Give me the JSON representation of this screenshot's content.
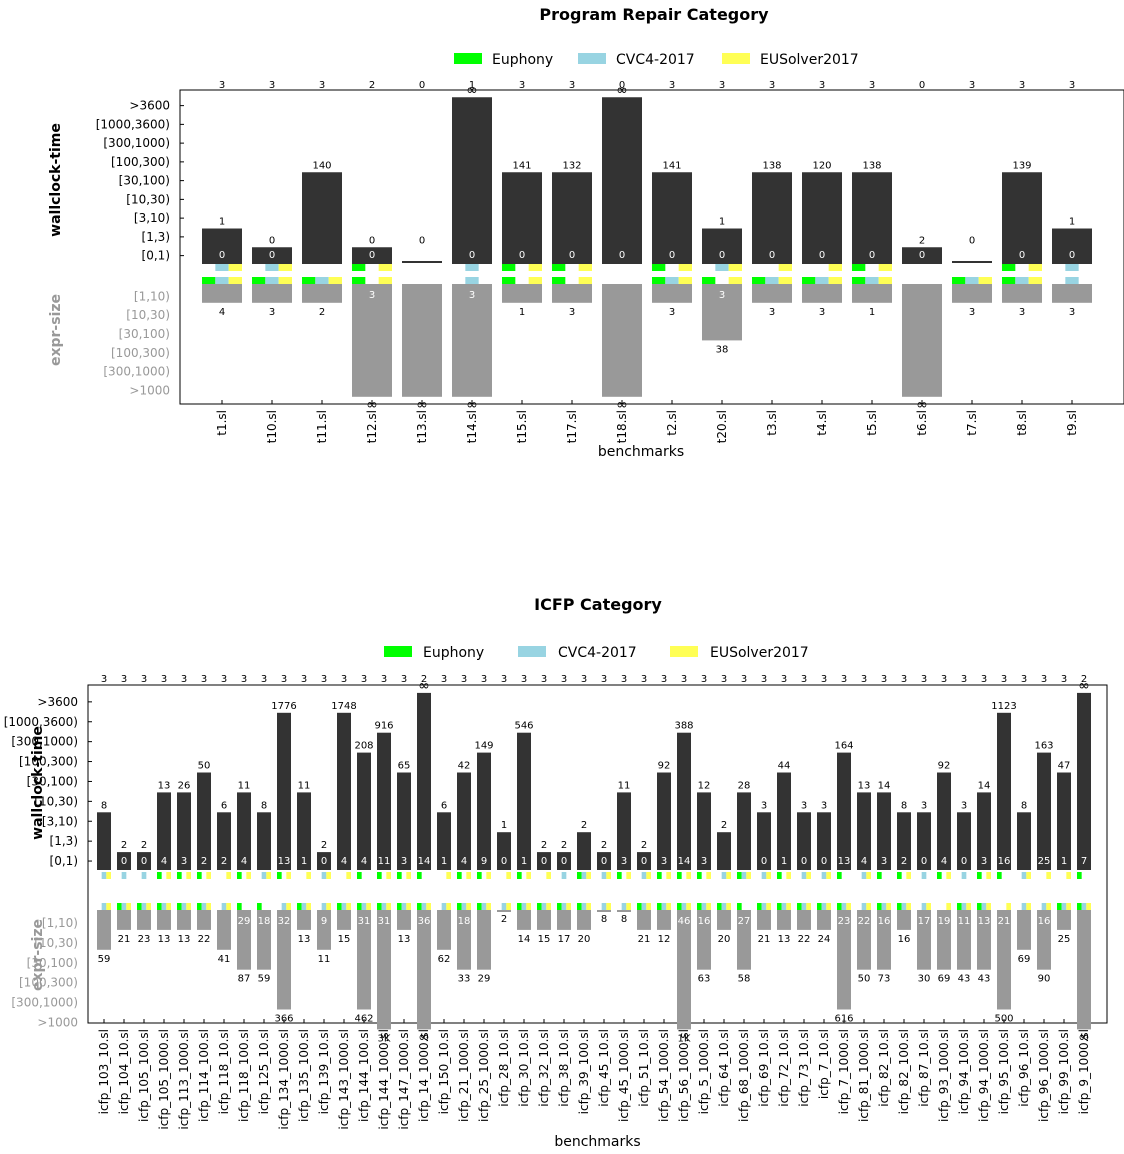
{
  "legend": {
    "items": [
      {
        "label": "Euphony",
        "color": "#00ff00"
      },
      {
        "label": "CVC4-2017",
        "color": "#98d4e2"
      },
      {
        "label": "EUSolver2017",
        "color": "#ffff55"
      }
    ]
  },
  "axes": {
    "time_label": "wallclock-time",
    "size_label": "expr-size",
    "xlabel": "benchmarks",
    "time_ticks": [
      "[0,1)",
      "[1,3)",
      "[3,10)",
      "[10,30)",
      "[30,100)",
      "[100,300)",
      "[300,1000)",
      "[1000,3600)",
      ">3600"
    ],
    "size_ticks": [
      "[1,10)",
      "[10,30)",
      "[30,100)",
      "[100,300)",
      "[300,1000)",
      ">1000"
    ]
  },
  "colors": {
    "time_bar": "#333333",
    "size_bar": "#999999",
    "size_text": "#999999"
  },
  "chart_data": [
    {
      "type": "bar",
      "title": "Program Repair  Category",
      "categories": [
        "t1.sl",
        "t10.sl",
        "t11.sl",
        "t12.sl",
        "t13.sl",
        "t14.sl",
        "t15.sl",
        "t17.sl",
        "t18.sl",
        "t2.sl",
        "t20.sl",
        "t3.sl",
        "t4.sl",
        "t5.sl",
        "t6.sl",
        "t7.sl",
        "t8.sl",
        "t9.sl"
      ],
      "top_counts": [
        "3",
        "3",
        "3",
        "2",
        "0",
        "1",
        "3",
        "3",
        "0",
        "3",
        "3",
        "3",
        "3",
        "3",
        "0",
        "3",
        "3",
        "3"
      ],
      "time_bucket": [
        1,
        0,
        4,
        0,
        0,
        8,
        4,
        4,
        8,
        4,
        1,
        4,
        4,
        4,
        0,
        0,
        4,
        1
      ],
      "time_label": [
        "1",
        "0",
        "140",
        "0",
        "0",
        "∞",
        "141",
        "132",
        "∞",
        "141",
        "1",
        "138",
        "120",
        "138",
        "2",
        "0",
        "139",
        "1"
      ],
      "time_inner": [
        "0",
        "0",
        "",
        "0",
        "",
        "0",
        "0",
        "0",
        "0",
        "0",
        "0",
        "0",
        "0",
        "0",
        "0",
        "",
        "0",
        "0"
      ],
      "size_bucket": [
        0,
        0,
        0,
        5,
        5,
        5,
        0,
        0,
        5,
        0,
        2,
        0,
        0,
        0,
        5,
        0,
        0,
        0
      ],
      "size_label": [
        "4",
        "3",
        "2",
        "∞",
        "∞",
        "∞",
        "1",
        "3",
        "∞",
        "3",
        "38",
        "3",
        "3",
        "1",
        "∞",
        "3",
        "3",
        "3"
      ],
      "size_inner": [
        "",
        "",
        "",
        "3",
        "",
        "3",
        "",
        "",
        "",
        "",
        "3",
        "",
        "",
        "",
        "",
        "",
        "",
        ""
      ],
      "time_solvers": [
        [
          "",
          "C",
          "Y"
        ],
        [
          "",
          "C",
          "Y"
        ],
        [
          "",
          "",
          ""
        ],
        [
          "E",
          "",
          "Y"
        ],
        [
          "",
          "",
          ""
        ],
        [
          "",
          "C",
          ""
        ],
        [
          "E",
          "",
          "Y"
        ],
        [
          "E",
          "",
          "Y"
        ],
        [
          "",
          "",
          ""
        ],
        [
          "E",
          "",
          "Y"
        ],
        [
          "",
          "C",
          "Y"
        ],
        [
          "",
          "",
          "Y"
        ],
        [
          "",
          "",
          "Y"
        ],
        [
          "E",
          "",
          "Y"
        ],
        [
          "",
          "",
          ""
        ],
        [
          "",
          "",
          ""
        ],
        [
          "E",
          "",
          "Y"
        ],
        [
          "",
          "C",
          ""
        ]
      ],
      "size_solvers": [
        [
          "E",
          "C",
          "Y"
        ],
        [
          "E",
          "C",
          "Y"
        ],
        [
          "E",
          "C",
          "Y"
        ],
        [
          "E",
          "",
          "Y"
        ],
        [
          "",
          "",
          ""
        ],
        [
          "",
          "C",
          ""
        ],
        [
          "E",
          "",
          "Y"
        ],
        [
          "E",
          "",
          "Y"
        ],
        [
          "",
          "",
          ""
        ],
        [
          "E",
          "C",
          "Y"
        ],
        [
          "E",
          "",
          "Y"
        ],
        [
          "E",
          "C",
          "Y"
        ],
        [
          "E",
          "C",
          "Y"
        ],
        [
          "E",
          "C",
          "Y"
        ],
        [
          "",
          "",
          ""
        ],
        [
          "E",
          "C",
          "Y"
        ],
        [
          "E",
          "C",
          "Y"
        ],
        [
          "",
          "C",
          ""
        ]
      ]
    },
    {
      "type": "bar",
      "title": "ICFP  Category",
      "categories": [
        "icfp_103_10.sl",
        "icfp_104_10.sl",
        "icfp_105_100.sl",
        "icfp_105_1000.sl",
        "icfp_113_1000.sl",
        "icfp_114_100.sl",
        "icfp_118_10.sl",
        "icfp_118_100.sl",
        "icfp_125_10.sl",
        "icfp_134_1000.sl",
        "icfp_135_100.sl",
        "icfp_139_10.sl",
        "icfp_143_1000.sl",
        "icfp_144_100.sl",
        "icfp_144_1000.sl",
        "icfp_147_1000.sl",
        "icfp_14_1000.sl",
        "icfp_150_10.sl",
        "icfp_21_1000.sl",
        "icfp_25_1000.sl",
        "icfp_28_10.sl",
        "icfp_30_10.sl",
        "icfp_32_10.sl",
        "icfp_38_10.sl",
        "icfp_39_100.sl",
        "icfp_45_10.sl",
        "icfp_45_1000.sl",
        "icfp_51_10.sl",
        "icfp_54_1000.sl",
        "icfp_56_1000.sl",
        "icfp_5_1000.sl",
        "icfp_64_10.sl",
        "icfp_68_1000.sl",
        "icfp_69_10.sl",
        "icfp_72_10.sl",
        "icfp_73_10.sl",
        "icfp_7_10.sl",
        "icfp_7_1000.sl",
        "icfp_81_1000.sl",
        "icfp_82_10.sl",
        "icfp_82_100.sl",
        "icfp_87_10.sl",
        "icfp_93_1000.sl",
        "icfp_94_100.sl",
        "icfp_94_1000.sl",
        "icfp_95_100.sl",
        "icfp_96_10.sl",
        "icfp_96_1000.sl",
        "icfp_99_100.sl",
        "icfp_9_1000.sl"
      ],
      "top_counts": [
        "3",
        "3",
        "3",
        "3",
        "3",
        "3",
        "3",
        "3",
        "3",
        "3",
        "3",
        "3",
        "3",
        "3",
        "3",
        "3",
        "2",
        "3",
        "3",
        "3",
        "3",
        "3",
        "3",
        "3",
        "3",
        "3",
        "3",
        "3",
        "3",
        "3",
        "3",
        "3",
        "3",
        "3",
        "3",
        "3",
        "3",
        "3",
        "3",
        "3",
        "3",
        "3",
        "3",
        "3",
        "3",
        "3",
        "3",
        "3",
        "3",
        "2"
      ],
      "time_bucket": [
        2,
        0,
        0,
        3,
        3,
        4,
        2,
        3,
        2,
        7,
        3,
        0,
        7,
        5,
        6,
        4,
        8,
        2,
        4,
        5,
        1,
        6,
        0,
        0,
        1,
        0,
        3,
        0,
        4,
        6,
        3,
        1,
        3,
        2,
        4,
        2,
        2,
        5,
        3,
        3,
        2,
        2,
        4,
        2,
        3,
        7,
        2,
        5,
        4,
        8
      ],
      "time_label": [
        "8",
        "2",
        "2",
        "13",
        "26",
        "50",
        "6",
        "11",
        "8",
        "1776",
        "11",
        "2",
        "1748",
        "208",
        "916",
        "65",
        "∞",
        "6",
        "42",
        "149",
        "1",
        "546",
        "2",
        "2",
        "2",
        "2",
        "11",
        "2",
        "92",
        "388",
        "12",
        "2",
        "28",
        "3",
        "44",
        "3",
        "3",
        "164",
        "13",
        "14",
        "8",
        "3",
        "92",
        "3",
        "14",
        "1123",
        "8",
        "163",
        "47",
        "∞"
      ],
      "time_inner": [
        "",
        "0",
        "0",
        "4",
        "3",
        "2",
        "2",
        "4",
        "",
        "13",
        "1",
        "0",
        "4",
        "4",
        "11",
        "3",
        "14",
        "1",
        "4",
        "9",
        "0",
        "1",
        "0",
        "0",
        "",
        "0",
        "3",
        "0",
        "3",
        "14",
        "3",
        "",
        "",
        "0",
        "1",
        "0",
        "0",
        "13",
        "4",
        "3",
        "2",
        "0",
        "4",
        "0",
        "3",
        "16",
        "",
        "25",
        "1",
        "7"
      ],
      "size_bucket": [
        1,
        0,
        0,
        0,
        0,
        0,
        1,
        2,
        2,
        4,
        0,
        1,
        0,
        4,
        5,
        0,
        5,
        1,
        2,
        2,
        -1,
        0,
        0,
        0,
        0,
        -1,
        -1,
        0,
        0,
        5,
        2,
        0,
        2,
        0,
        0,
        0,
        0,
        4,
        2,
        2,
        0,
        2,
        2,
        2,
        2,
        4,
        1,
        2,
        0,
        5
      ],
      "size_label": [
        "59",
        "21",
        "23",
        "13",
        "13",
        "22",
        "41",
        "87",
        "59",
        "366",
        "13",
        "11",
        "15",
        "462",
        "3K",
        "13",
        "∞",
        "62",
        "33",
        "29",
        "2",
        "14",
        "15",
        "17",
        "20",
        "8",
        "8",
        "21",
        "12",
        "1K",
        "63",
        "20",
        "58",
        "21",
        "13",
        "22",
        "24",
        "616",
        "50",
        "73",
        "16",
        "30",
        "69",
        "43",
        "43",
        "500",
        "69",
        "90",
        "25",
        "∞"
      ],
      "size_inner": [
        "",
        "",
        "",
        "",
        "",
        "",
        "",
        "29",
        "18",
        "32",
        "",
        "9",
        "",
        "31",
        "31",
        "",
        "36",
        "",
        "18",
        "",
        "",
        "",
        "",
        "",
        "",
        "",
        "",
        "",
        "",
        "46",
        "16",
        "",
        "27",
        "",
        "",
        "",
        "",
        "23",
        "22",
        "16",
        "",
        "17",
        "19",
        "11",
        "13",
        "21",
        "",
        "16",
        "",
        ""
      ],
      "time_solvers": [
        [
          "",
          "C",
          "Y"
        ],
        [
          "",
          "C",
          ""
        ],
        [
          "",
          "C",
          ""
        ],
        [
          "E",
          "",
          "Y"
        ],
        [
          "E",
          "",
          "Y"
        ],
        [
          "E",
          "",
          "Y"
        ],
        [
          "",
          "",
          "Y"
        ],
        [
          "E",
          "",
          "Y"
        ],
        [
          "",
          "C",
          "Y"
        ],
        [
          "E",
          "",
          "Y"
        ],
        [
          "",
          "",
          "Y"
        ],
        [
          "",
          "C",
          "Y"
        ],
        [
          "",
          "",
          "Y"
        ],
        [
          "E",
          "",
          ""
        ],
        [
          "E",
          "",
          "Y"
        ],
        [
          "E",
          "",
          "Y"
        ],
        [
          "E",
          "",
          ""
        ],
        [
          "",
          "",
          "Y"
        ],
        [
          "E",
          "",
          "Y"
        ],
        [
          "E",
          "",
          "Y"
        ],
        [
          "",
          "",
          "Y"
        ],
        [
          "E",
          "",
          "Y"
        ],
        [
          "",
          "",
          "Y"
        ],
        [
          "",
          "C",
          ""
        ],
        [
          "E",
          "C",
          "Y"
        ],
        [
          "",
          "C",
          "Y"
        ],
        [
          "E",
          "",
          "Y"
        ],
        [
          "",
          "C",
          "Y"
        ],
        [
          "E",
          "",
          "Y"
        ],
        [
          "E",
          "",
          "Y"
        ],
        [
          "E",
          "",
          "Y"
        ],
        [
          "",
          "C",
          "Y"
        ],
        [
          "E",
          "C",
          "Y"
        ],
        [
          "",
          "C",
          "Y"
        ],
        [
          "E",
          "",
          "Y"
        ],
        [
          "",
          "C",
          "Y"
        ],
        [
          "",
          "C",
          "Y"
        ],
        [
          "E",
          "",
          ""
        ],
        [
          "",
          "C",
          "Y"
        ],
        [
          "E",
          "",
          ""
        ],
        [
          "E",
          "",
          "Y"
        ],
        [
          "",
          "C",
          ""
        ],
        [
          "E",
          "",
          "Y"
        ],
        [
          "",
          "C",
          ""
        ],
        [
          "E",
          "",
          "Y"
        ],
        [
          "E",
          "",
          ""
        ],
        [
          "",
          "C",
          "Y"
        ],
        [
          "",
          "",
          "Y"
        ],
        [
          "",
          "",
          "Y"
        ],
        [
          "E",
          "",
          ""
        ]
      ],
      "size_solvers": [
        [
          "",
          "C",
          "Y"
        ],
        [
          "E",
          "C",
          "Y"
        ],
        [
          "E",
          "C",
          "Y"
        ],
        [
          "E",
          "C",
          "Y"
        ],
        [
          "E",
          "C",
          "Y"
        ],
        [
          "E",
          "C",
          "Y"
        ],
        [
          "",
          "C",
          "Y"
        ],
        [
          "E",
          "",
          ""
        ],
        [
          "E",
          "",
          ""
        ],
        [
          "",
          "C",
          "Y"
        ],
        [
          "E",
          "C",
          "Y"
        ],
        [
          "",
          "C",
          "Y"
        ],
        [
          "E",
          "C",
          "Y"
        ],
        [
          "E",
          "C",
          "Y"
        ],
        [
          "E",
          "C",
          "Y"
        ],
        [
          "E",
          "C",
          "Y"
        ],
        [
          "E",
          "C",
          "Y"
        ],
        [
          "",
          "C",
          "Y"
        ],
        [
          "E",
          "C",
          "Y"
        ],
        [
          "E",
          "C",
          "Y"
        ],
        [
          "",
          "C",
          "Y"
        ],
        [
          "E",
          "C",
          "Y"
        ],
        [
          "E",
          "C",
          "Y"
        ],
        [
          "E",
          "C",
          "Y"
        ],
        [
          "E",
          "C",
          "Y"
        ],
        [
          "",
          "C",
          "Y"
        ],
        [
          "",
          "C",
          "Y"
        ],
        [
          "E",
          "C",
          "Y"
        ],
        [
          "E",
          "C",
          "Y"
        ],
        [
          "E",
          "C",
          "Y"
        ],
        [
          "E",
          "C",
          "Y"
        ],
        [
          "E",
          "C",
          "Y"
        ],
        [
          "E",
          "",
          ""
        ],
        [
          "E",
          "C",
          "Y"
        ],
        [
          "E",
          "C",
          "Y"
        ],
        [
          "E",
          "C",
          "Y"
        ],
        [
          "E",
          "C",
          "Y"
        ],
        [
          "E",
          "C",
          "Y"
        ],
        [
          "",
          "C",
          "Y"
        ],
        [
          "E",
          "C",
          "Y"
        ],
        [
          "E",
          "C",
          "Y"
        ],
        [
          "",
          "C",
          "Y"
        ],
        [
          "",
          "",
          "Y"
        ],
        [
          "E",
          "C",
          "Y"
        ],
        [
          "E",
          "C",
          "Y"
        ],
        [
          "",
          "",
          "Y"
        ],
        [
          "",
          "C",
          "Y"
        ],
        [
          "",
          "C",
          "Y"
        ],
        [
          "E",
          "C",
          "Y"
        ],
        [
          "E",
          "C",
          "Y"
        ]
      ]
    }
  ]
}
